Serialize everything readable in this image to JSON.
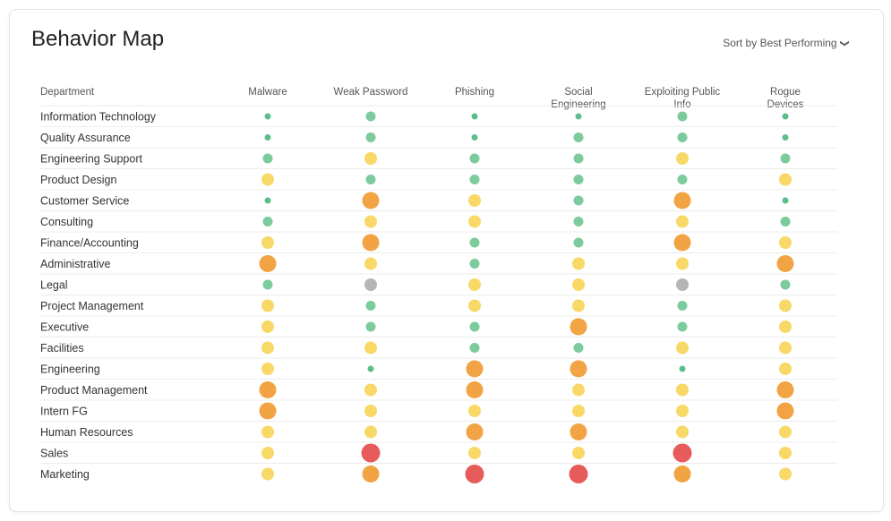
{
  "page": {
    "title": "Behavior Map",
    "sort_label": "Sort by Best Performing"
  },
  "colors": {
    "xs": "#5cbf8a",
    "s": "#7ccb9d",
    "m": "#f8d866",
    "l": "#f2a343",
    "xl": "#e85b5b",
    "na": "#b5b5b8"
  },
  "chart_data": {
    "type": "dot-matrix",
    "header_label": "Department",
    "columns": [
      [
        "Malware"
      ],
      [
        "Weak Password"
      ],
      [
        "Phishing"
      ],
      [
        "Social",
        "Engineering"
      ],
      [
        "Exploiting Public",
        "Info"
      ],
      [
        "Rogue",
        "Devices"
      ]
    ],
    "rows": [
      {
        "department": "Information Technology",
        "values": [
          "xs",
          "s",
          "xs",
          "xs",
          "s",
          "xs"
        ]
      },
      {
        "department": "Quality Assurance",
        "values": [
          "xs",
          "s",
          "xs",
          "s",
          "s",
          "xs"
        ]
      },
      {
        "department": "Engineering Support",
        "values": [
          "s",
          "m",
          "s",
          "s",
          "m",
          "s"
        ]
      },
      {
        "department": "Product Design",
        "values": [
          "m",
          "s",
          "s",
          "s",
          "s",
          "m"
        ]
      },
      {
        "department": "Customer Service",
        "values": [
          "xs",
          "l",
          "m",
          "s",
          "l",
          "xs"
        ]
      },
      {
        "department": "Consulting",
        "values": [
          "s",
          "m",
          "m",
          "s",
          "m",
          "s"
        ]
      },
      {
        "department": "Finance/Accounting",
        "values": [
          "m",
          "l",
          "s",
          "s",
          "l",
          "m"
        ]
      },
      {
        "department": "Administrative",
        "values": [
          "l",
          "m",
          "s",
          "m",
          "m",
          "l"
        ]
      },
      {
        "department": "Legal",
        "values": [
          "s",
          "na",
          "m",
          "m",
          "na",
          "s"
        ]
      },
      {
        "department": "Project Management",
        "values": [
          "m",
          "s",
          "m",
          "m",
          "s",
          "m"
        ]
      },
      {
        "department": "Executive",
        "values": [
          "m",
          "s",
          "s",
          "l",
          "s",
          "m"
        ]
      },
      {
        "department": "Facilities",
        "values": [
          "m",
          "m",
          "s",
          "s",
          "m",
          "m"
        ]
      },
      {
        "department": "Engineering",
        "values": [
          "m",
          "xs",
          "l",
          "l",
          "xs",
          "m"
        ]
      },
      {
        "department": "Product Management",
        "values": [
          "l",
          "m",
          "l",
          "m",
          "m",
          "l"
        ]
      },
      {
        "department": "Intern FG",
        "values": [
          "l",
          "m",
          "m",
          "m",
          "m",
          "l"
        ]
      },
      {
        "department": "Human Resources",
        "values": [
          "m",
          "m",
          "l",
          "l",
          "m",
          "m"
        ]
      },
      {
        "department": "Sales",
        "values": [
          "m",
          "xl",
          "m",
          "m",
          "xl",
          "m"
        ]
      },
      {
        "department": "Marketing",
        "values": [
          "m",
          "l",
          "xl",
          "xl",
          "l",
          "m"
        ]
      }
    ]
  }
}
